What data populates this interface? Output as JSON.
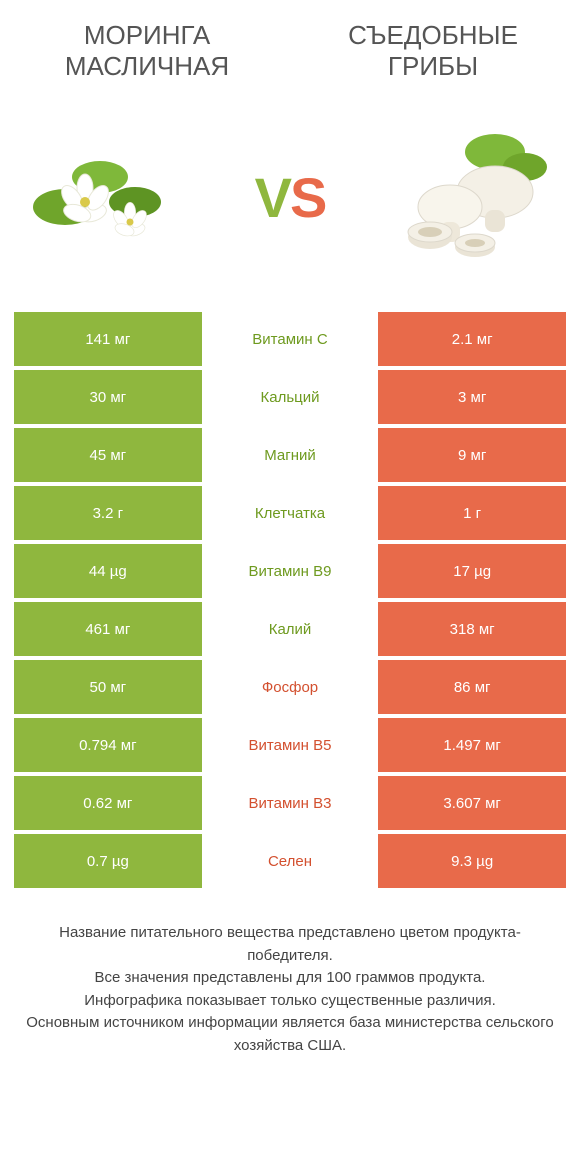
{
  "colors": {
    "green": "#8fb73e",
    "orange": "#e86a4a",
    "green_text": "#6e9a1f",
    "orange_text": "#d3502f",
    "background": "#ffffff",
    "text": "#444444"
  },
  "header": {
    "left_title": "Моринга масличная",
    "right_title": "Съедобные грибы",
    "vs_label": "VS"
  },
  "images": {
    "left_alt": "moringa-flower",
    "right_alt": "mushrooms"
  },
  "comparison": {
    "type": "table",
    "columns": [
      "left_value",
      "nutrient",
      "right_value"
    ],
    "rows": [
      {
        "left": "141 мг",
        "label": "Витамин C",
        "right": "2.1 мг",
        "winner": "left"
      },
      {
        "left": "30 мг",
        "label": "Кальций",
        "right": "3 мг",
        "winner": "left"
      },
      {
        "left": "45 мг",
        "label": "Магний",
        "right": "9 мг",
        "winner": "left"
      },
      {
        "left": "3.2 г",
        "label": "Клетчатка",
        "right": "1 г",
        "winner": "left"
      },
      {
        "left": "44 µg",
        "label": "Витамин B9",
        "right": "17 µg",
        "winner": "left"
      },
      {
        "left": "461 мг",
        "label": "Калий",
        "right": "318 мг",
        "winner": "left"
      },
      {
        "left": "50 мг",
        "label": "Фосфор",
        "right": "86 мг",
        "winner": "right"
      },
      {
        "left": "0.794 мг",
        "label": "Витамин B5",
        "right": "1.497 мг",
        "winner": "right"
      },
      {
        "left": "0.62 мг",
        "label": "Витамин B3",
        "right": "3.607 мг",
        "winner": "right"
      },
      {
        "left": "0.7 µg",
        "label": "Селен",
        "right": "9.3 µg",
        "winner": "right"
      }
    ]
  },
  "footnote": {
    "line1": "Название питательного вещества представлено цветом продукта-победителя.",
    "line2": "Все значения представлены для 100 граммов продукта.",
    "line3": "Инфографика показывает только существенные различия.",
    "line4": "Основным источником информации является база министерства сельского хозяйства США."
  }
}
